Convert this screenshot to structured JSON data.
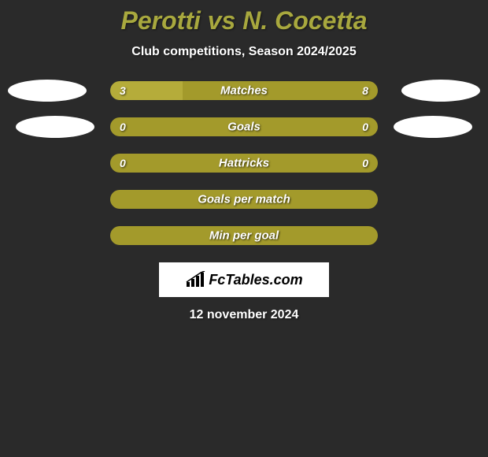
{
  "title": "Perotti vs N. Cocetta",
  "subtitle": "Club competitions, Season 2024/2025",
  "colors": {
    "background": "#2a2a2a",
    "accent": "#a8a83e",
    "bar_olive": "#a39a2b",
    "bar_olive_light": "#b5ac3a",
    "text_white": "#ffffff"
  },
  "rows": [
    {
      "label": "Matches",
      "left_val": "3",
      "right_val": "8",
      "left_pct": 27,
      "left_color": "#b5ac3a",
      "right_color": "#a39a2b",
      "show_ellipse_left": true,
      "show_ellipse_right": true,
      "ellipse_row": 1
    },
    {
      "label": "Goals",
      "left_val": "0",
      "right_val": "0",
      "left_pct": 0,
      "left_color": "#b5ac3a",
      "right_color": "#a39a2b",
      "show_ellipse_left": true,
      "show_ellipse_right": true,
      "ellipse_row": 2
    },
    {
      "label": "Hattricks",
      "left_val": "0",
      "right_val": "0",
      "left_pct": 0,
      "left_color": "#b5ac3a",
      "right_color": "#a39a2b",
      "show_ellipse_left": false,
      "show_ellipse_right": false
    },
    {
      "label": "Goals per match",
      "left_val": "",
      "right_val": "",
      "left_pct": 0,
      "left_color": "#b5ac3a",
      "right_color": "#a39a2b",
      "show_ellipse_left": false,
      "show_ellipse_right": false
    },
    {
      "label": "Min per goal",
      "left_val": "",
      "right_val": "",
      "left_pct": 0,
      "left_color": "#b5ac3a",
      "right_color": "#a39a2b",
      "show_ellipse_left": false,
      "show_ellipse_right": false
    }
  ],
  "logo_text": "FcTables.com",
  "date": "12 november 2024"
}
